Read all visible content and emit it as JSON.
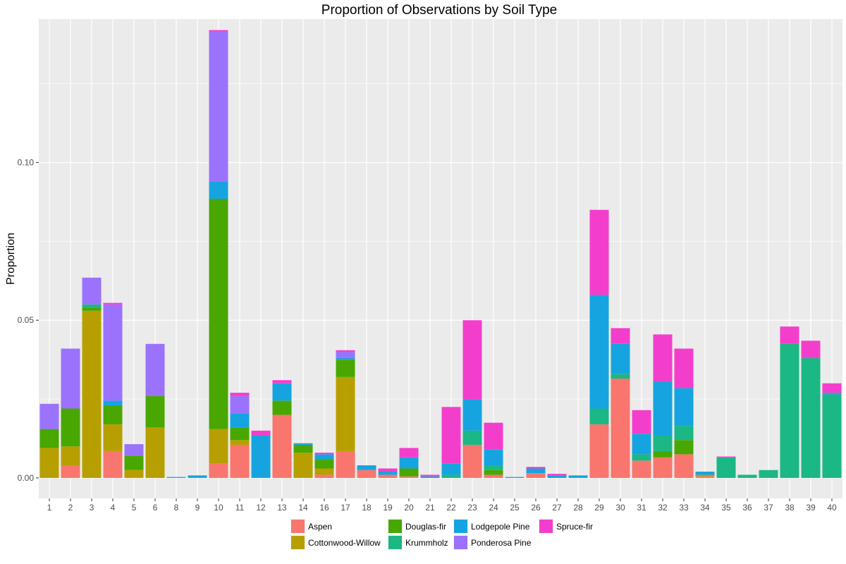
{
  "chart_data": {
    "type": "bar",
    "stacked": true,
    "title": "Proportion of Observations by Soil Type",
    "xlabel": "",
    "ylabel": "Proportion",
    "ylim": [
      -0.0065,
      0.1455
    ],
    "y_ticks": [
      0.0,
      0.05,
      0.1
    ],
    "y_tick_labels": [
      "0.00",
      "0.05",
      "0.10"
    ],
    "grid": true,
    "legend_position": "bottom",
    "categories": [
      "1",
      "2",
      "3",
      "4",
      "5",
      "6",
      "8",
      "9",
      "10",
      "11",
      "12",
      "13",
      "14",
      "16",
      "17",
      "18",
      "19",
      "20",
      "21",
      "22",
      "23",
      "24",
      "25",
      "26",
      "27",
      "28",
      "29",
      "30",
      "31",
      "32",
      "33",
      "34",
      "35",
      "36",
      "37",
      "38",
      "39",
      "40"
    ],
    "series": [
      {
        "name": "Aspen",
        "color": "#F8766D",
        "values": [
          0,
          0.004,
          0,
          0.0085,
          0,
          0,
          0,
          0,
          0.0045,
          0.0105,
          0,
          0.02,
          0,
          0.001,
          0.0085,
          0.0025,
          0.001,
          0.0005,
          0,
          0,
          0.0105,
          0.001,
          0,
          0.0015,
          0,
          0,
          0.017,
          0.0315,
          0.0055,
          0.0065,
          0.0075,
          0.0005,
          0,
          0,
          0,
          0,
          0,
          0
        ]
      },
      {
        "name": "Cottonwood-Willow",
        "color": "#B79F00",
        "values": [
          0.0095,
          0.006,
          0.053,
          0.0085,
          0.0025,
          0.016,
          0,
          0,
          0.011,
          0.0015,
          0,
          0,
          0.008,
          0.002,
          0.0235,
          0,
          0,
          0,
          0,
          0,
          0,
          0,
          0,
          0,
          0,
          0,
          0,
          0,
          0,
          0,
          0,
          0.0005,
          0,
          0,
          0,
          0,
          0,
          0
        ]
      },
      {
        "name": "Douglas-fir",
        "color": "#48A700",
        "values": [
          0.006,
          0.012,
          0.001,
          0.006,
          0.0045,
          0.01,
          0,
          0,
          0.073,
          0.004,
          0,
          0.0045,
          0.0025,
          0.003,
          0.0055,
          0,
          0,
          0.0025,
          0,
          0,
          0,
          0.0015,
          0,
          0,
          0,
          0,
          0,
          0,
          0,
          0.002,
          0.0045,
          0,
          0,
          0,
          0,
          0,
          0,
          0
        ]
      },
      {
        "name": "Krummholz",
        "color": "#1BB785",
        "values": [
          0,
          0,
          0.001,
          0,
          0,
          0,
          0,
          0,
          0,
          0,
          0,
          0,
          0,
          0,
          0,
          0,
          0,
          0,
          0,
          0.001,
          0.0045,
          0.0015,
          0,
          0,
          0,
          0,
          0.005,
          0.0015,
          0.002,
          0.005,
          0.0045,
          0,
          0.0065,
          0.001,
          0.0025,
          0.0425,
          0.038,
          0.0265
        ]
      },
      {
        "name": "Lodgepole Pine",
        "color": "#16A4E0",
        "values": [
          0,
          0,
          0,
          0.0015,
          0,
          0,
          0.0003,
          0.0008,
          0.0055,
          0.0045,
          0.0135,
          0.0055,
          0.0005,
          0.0015,
          0.0005,
          0.0015,
          0.001,
          0.0035,
          0.0005,
          0.0035,
          0.01,
          0.005,
          0.0003,
          0.0015,
          0.0008,
          0.0008,
          0.036,
          0.0095,
          0.0065,
          0.017,
          0.012,
          0.001,
          0,
          0,
          0,
          0,
          0,
          0.0005
        ]
      },
      {
        "name": "Ponderosa Pine",
        "color": "#9B72FB",
        "values": [
          0.008,
          0.019,
          0.0085,
          0.0305,
          0.0037,
          0.0165,
          0,
          0,
          0.0475,
          0.0055,
          0,
          0,
          0,
          0,
          0.002,
          0,
          0,
          0,
          0,
          0,
          0,
          0,
          0,
          0,
          0,
          0,
          0,
          0,
          0,
          0,
          0,
          0,
          0,
          0,
          0,
          0,
          0,
          0
        ]
      },
      {
        "name": "Spruce-fir",
        "color": "#F33ECC",
        "values": [
          0,
          0,
          0,
          0.0005,
          0,
          0,
          0,
          0,
          0.0005,
          0.001,
          0.0015,
          0.001,
          0,
          0.0005,
          0.0005,
          0,
          0.001,
          0.003,
          0.0005,
          0.018,
          0.025,
          0.0085,
          0,
          0.0005,
          0.0005,
          0,
          0.027,
          0.005,
          0.0075,
          0.015,
          0.0125,
          0,
          0.0003,
          0,
          0,
          0.0055,
          0.0055,
          0.003
        ]
      }
    ]
  }
}
